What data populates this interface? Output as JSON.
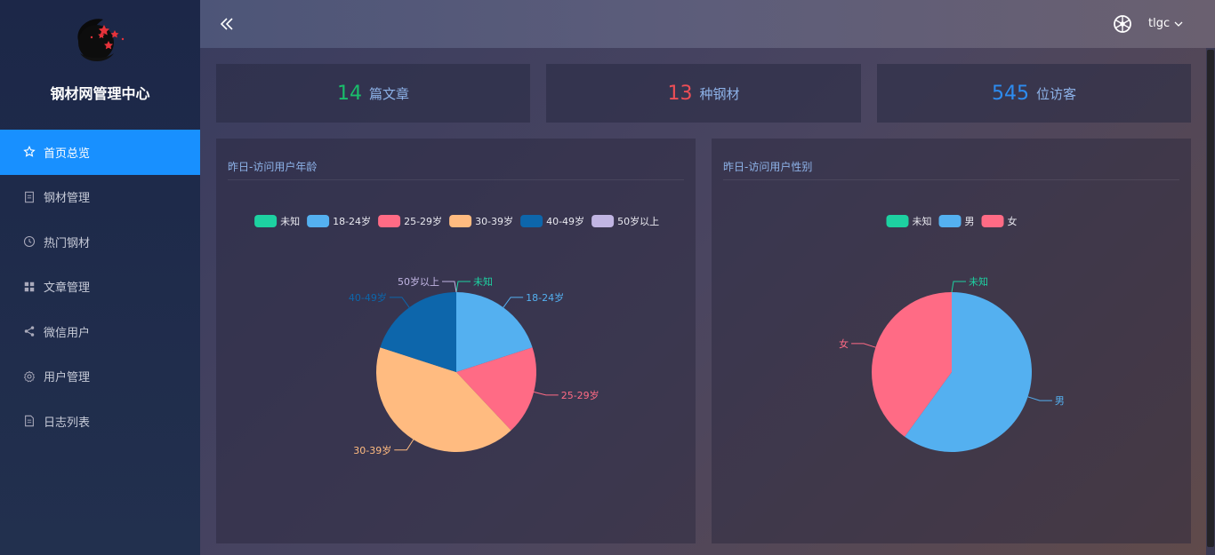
{
  "sidebar": {
    "brand": "钢材网管理中心",
    "items": [
      {
        "label": "首页总览",
        "icon": "star-icon",
        "active": true
      },
      {
        "label": "钢材管理",
        "icon": "document-icon",
        "active": false
      },
      {
        "label": "热门钢材",
        "icon": "clock-icon",
        "active": false
      },
      {
        "label": "文章管理",
        "icon": "grid-icon",
        "active": false
      },
      {
        "label": "微信用户",
        "icon": "share-icon",
        "active": false
      },
      {
        "label": "用户管理",
        "icon": "gear-icon",
        "active": false
      },
      {
        "label": "日志列表",
        "icon": "file-list-icon",
        "active": false
      }
    ]
  },
  "header": {
    "username": "tlgc"
  },
  "stats": [
    {
      "value": "14",
      "label": "篇文章",
      "color": "#19be6b"
    },
    {
      "value": "13",
      "label": "种钢材",
      "color": "#ed4e56"
    },
    {
      "value": "545",
      "label": "位访客",
      "color": "#2d8cf0"
    }
  ],
  "panels": {
    "age_title": "昨日-访问用户年龄",
    "gender_title": "昨日-访问用户性别"
  },
  "chart_data": [
    {
      "type": "pie",
      "title": "昨日-访问用户年龄",
      "legend_position": "top",
      "slices": [
        {
          "name": "未知",
          "value": 0,
          "color": "#1dd1a1"
        },
        {
          "name": "18-24岁",
          "value": 20,
          "color": "#54b0f0"
        },
        {
          "name": "25-29岁",
          "value": 18,
          "color": "#ff6b85"
        },
        {
          "name": "30-39岁",
          "value": 42,
          "color": "#ffbb80"
        },
        {
          "name": "40-49岁",
          "value": 20,
          "color": "#0d66ab"
        },
        {
          "name": "50岁以上",
          "value": 0,
          "color": "#c1b5e3"
        }
      ]
    },
    {
      "type": "pie",
      "title": "昨日-访问用户性别",
      "legend_position": "top",
      "slices": [
        {
          "name": "未知",
          "value": 0,
          "color": "#1dd1a1"
        },
        {
          "name": "男",
          "value": 60,
          "color": "#54b0f0"
        },
        {
          "name": "女",
          "value": 40,
          "color": "#ff6b85"
        }
      ]
    }
  ]
}
